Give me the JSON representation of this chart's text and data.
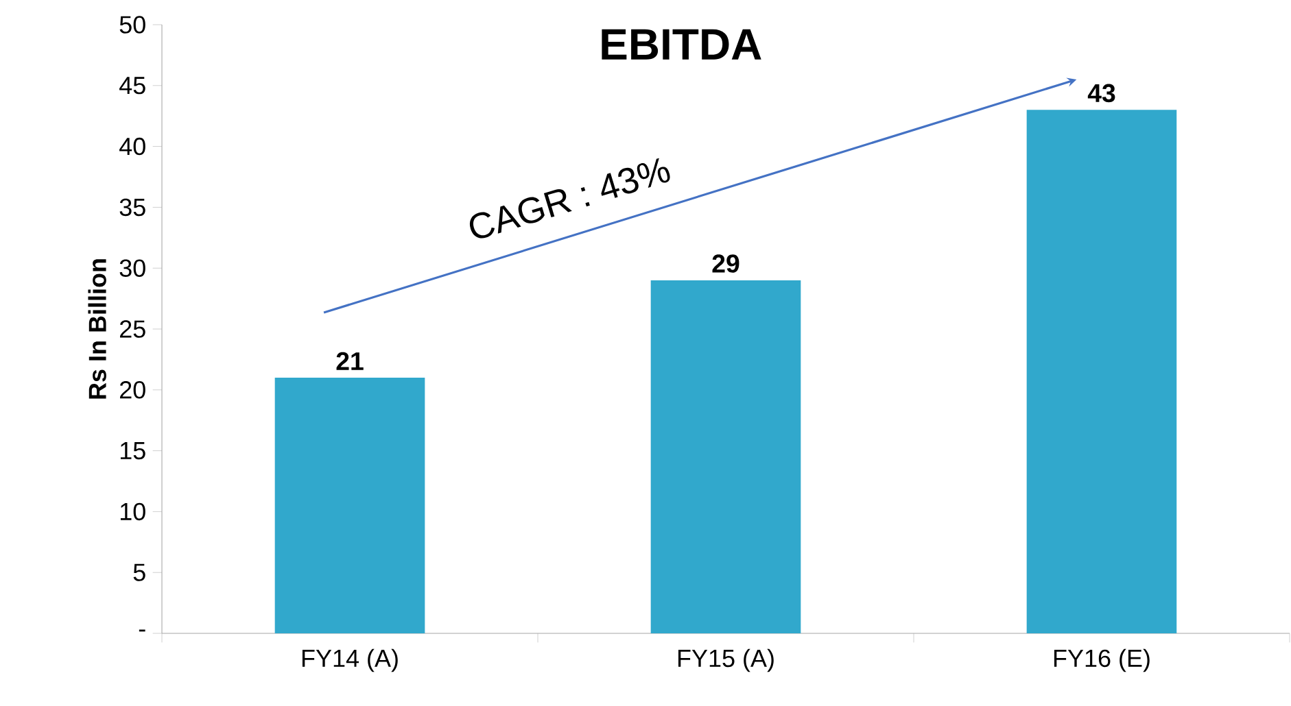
{
  "chart_data": {
    "type": "bar",
    "title": "EBITDA",
    "ylabel": "Rs In Billion",
    "categories": [
      "FY14 (A)",
      "FY15 (A)",
      "FY16 (E)"
    ],
    "values": [
      21,
      29,
      43
    ],
    "color": "#31a8cc",
    "data_labels": true,
    "ylim": [
      0,
      50
    ],
    "yticks": [
      {
        "value": 0,
        "label": "-"
      },
      5,
      10,
      15,
      20,
      25,
      30,
      35,
      40,
      45,
      50
    ],
    "grid": false,
    "annotations": [
      "CAGR : 43%"
    ]
  }
}
